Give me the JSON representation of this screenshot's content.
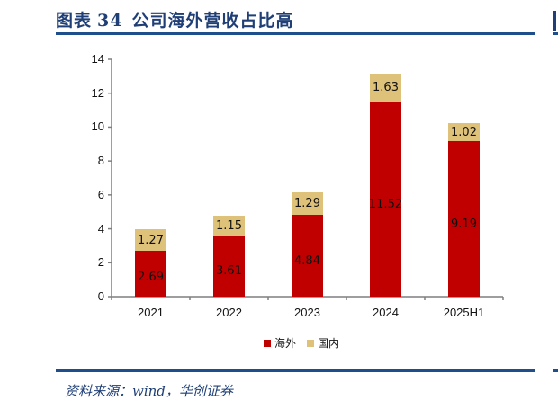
{
  "header": {
    "figure_label": "图表",
    "figure_number": "34",
    "title": "公司海外营收占比高"
  },
  "footer": {
    "source": "资料来源：wind，华创证券"
  },
  "colors": {
    "overseas": "#c00000",
    "domestic": "#dfc27a",
    "title_blue": "#1f3f76",
    "rule_blue": "#1f4e8c"
  },
  "legend": [
    {
      "label": "海外",
      "color": "#c00000"
    },
    {
      "label": "国内",
      "color": "#dfc27a"
    }
  ],
  "chart_data": {
    "type": "bar",
    "stacked": true,
    "title": "公司海外营收占比高",
    "xlabel": "",
    "ylabel": "",
    "categories": [
      "2021",
      "2022",
      "2023",
      "2024",
      "2025H1"
    ],
    "series": [
      {
        "name": "海外",
        "color": "#c00000",
        "values": [
          2.69,
          3.61,
          4.84,
          11.52,
          9.19
        ]
      },
      {
        "name": "国内",
        "color": "#dfc27a",
        "values": [
          1.27,
          1.15,
          1.29,
          1.63,
          1.02
        ]
      }
    ],
    "yticks": [
      0,
      2,
      4,
      6,
      8,
      10,
      12,
      14
    ],
    "ylim": [
      0,
      14
    ],
    "grid": false,
    "legend_position": "bottom"
  }
}
